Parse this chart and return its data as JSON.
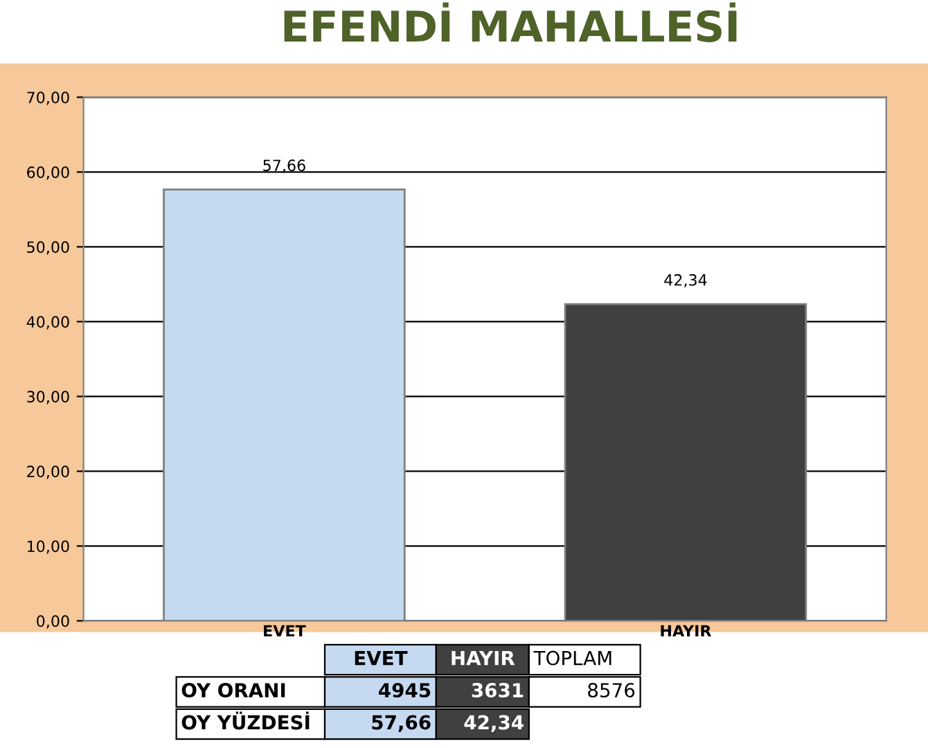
{
  "chart_data": {
    "type": "bar",
    "title": "EFENDİ MAHALLESİ",
    "categories": [
      "EVET",
      "HAYIR"
    ],
    "values": [
      57.66,
      42.34
    ],
    "colors": [
      "#c5d9f1",
      "#404040"
    ],
    "value_labels": [
      "57,66",
      "42,34"
    ],
    "ylim": [
      0,
      70
    ],
    "yticks": [
      {
        "value": 0,
        "label": "0,00"
      },
      {
        "value": 10,
        "label": "10,00"
      },
      {
        "value": 20,
        "label": "20,00"
      },
      {
        "value": 30,
        "label": "30,00"
      },
      {
        "value": 40,
        "label": "40,00"
      },
      {
        "value": 50,
        "label": "50,00"
      },
      {
        "value": 60,
        "label": "60,00"
      },
      {
        "value": 70,
        "label": "70,00"
      }
    ],
    "grid": "y",
    "annotations": [
      "TOPLAM",
      "OY ORANI",
      "4945",
      "3631",
      "8576",
      "OY YÜZDESİ",
      "57,66",
      "42,34"
    ]
  }
}
